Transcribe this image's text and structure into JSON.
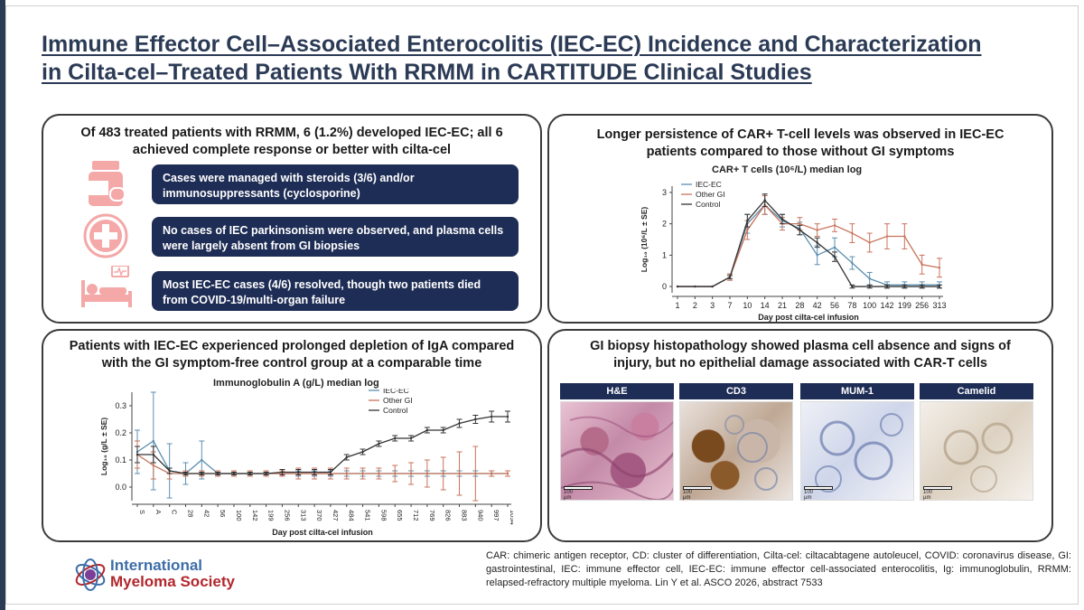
{
  "title": {
    "line1": "Immune Effector Cell–Associated Enterocolitis (IEC-EC) Incidence and Characterization",
    "line2": "in Cilta-cel–Treated Patients With RRMM in CARTITUDE Clinical Studies"
  },
  "panel_incidence": {
    "title_line1": "Of 483 treated patients with RRMM, 6 (1.2%) developed IEC-EC; all 6",
    "title_line2": "achieved complete response or better with cilta-cel",
    "items": [
      {
        "icon": "medicine-bottle-icon",
        "text": "Cases were managed with steroids (3/6) and/or immunosuppressants (cyclosporine)"
      },
      {
        "icon": "medical-cross-icon",
        "text": "No cases of IEC parkinsonism were observed, and plasma cells were largely absent from GI biopsies"
      },
      {
        "icon": "hospital-bed-icon",
        "text": "Most IEC-EC cases (4/6) resolved, though two patients died from COVID-19/multi-organ failure"
      }
    ]
  },
  "panel_car": {
    "title_line1": "Longer persistence of CAR+ T-cell levels was observed in IEC-EC",
    "title_line2": "patients compared to those without GI symptoms"
  },
  "panel_iga": {
    "title_line1": "Patients with IEC-EC experienced prolonged depletion of IgA compared",
    "title_line2": "with the GI symptom-free control group at a comparable time"
  },
  "panel_histo": {
    "title_line1": "GI biopsy histopathology showed plasma cell absence and signs of",
    "title_line2": "injury, but no epithelial damage associated with CAR-T cells",
    "stains": [
      "H&E",
      "CD3",
      "MUM-1",
      "Camelid"
    ],
    "scale_value": "100",
    "scale_unit": "µm"
  },
  "colors": {
    "iec_ec": "#5b8fb0",
    "other_gi": "#c8735a",
    "control": "#333333",
    "navy": "#1e2d55",
    "pink_icon": "#f4a8a8"
  },
  "chart_data": [
    {
      "type": "line",
      "title": "CAR+ T cells (10⁶/L) median log",
      "ylabel": "Log₁₀ (10⁶/L ± SE)",
      "xlabel": "Day post cilta-cel infusion",
      "categories": [
        "1",
        "2",
        "3",
        "7",
        "10",
        "14",
        "21",
        "28",
        "42",
        "56",
        "78",
        "100",
        "142",
        "199",
        "256",
        "313"
      ],
      "yticks": [
        0,
        1,
        2,
        3
      ],
      "ylim": [
        -0.2,
        3.2
      ],
      "legend": "top-left",
      "series": [
        {
          "name": "IEC-EC",
          "color": "#5b8fb0",
          "values": [
            0,
            0,
            0,
            0.3,
            2.0,
            2.6,
            2.1,
            1.85,
            1.0,
            1.25,
            0.75,
            0.25,
            0.05,
            0.05,
            0.05,
            0.05
          ],
          "err": [
            0,
            0,
            0,
            0.1,
            0.3,
            0.3,
            0.2,
            0.2,
            0.3,
            0.3,
            0.2,
            0.2,
            0.1,
            0.1,
            0.1,
            0.1
          ]
        },
        {
          "name": "Other GI",
          "color": "#c8735a",
          "values": [
            0,
            0,
            0,
            0.3,
            1.8,
            2.6,
            2.0,
            2.0,
            1.8,
            1.95,
            1.7,
            1.4,
            1.6,
            1.6,
            0.7,
            0.6
          ],
          "err": [
            0,
            0,
            0,
            0.1,
            0.3,
            0.3,
            0.2,
            0.2,
            0.2,
            0.2,
            0.3,
            0.3,
            0.4,
            0.4,
            0.3,
            0.3
          ]
        },
        {
          "name": "Control",
          "color": "#333333",
          "values": [
            0,
            0,
            0,
            0.3,
            2.1,
            2.75,
            2.15,
            1.8,
            1.4,
            0.95,
            0,
            0,
            0,
            0,
            0,
            0
          ],
          "err": [
            0,
            0,
            0,
            0.05,
            0.2,
            0.2,
            0.15,
            0.15,
            0.15,
            0.15,
            0.05,
            0.05,
            0.05,
            0.05,
            0.05,
            0.05
          ]
        }
      ]
    },
    {
      "type": "line",
      "title": "Immunoglobulin A (g/L) median log",
      "ylabel": "Log₁₀ (g/L ± SE)",
      "xlabel": "Day post cilta-cel infusion",
      "categories": [
        "S",
        "A",
        "C",
        "28",
        "42",
        "56",
        "100",
        "142",
        "199",
        "256",
        "313",
        "370",
        "427",
        "484",
        "541",
        "598",
        "655",
        "712",
        "769",
        "826",
        "883",
        "940",
        "997",
        "1054"
      ],
      "yticks": [
        0.0,
        0.1,
        0.2,
        0.3
      ],
      "ylim": [
        -0.05,
        0.35
      ],
      "legend": "top-right",
      "series": [
        {
          "name": "IEC-EC",
          "color": "#5b8fb0",
          "values": [
            0.13,
            0.17,
            0.06,
            0.05,
            0.1,
            0.05,
            0.05,
            0.05,
            0.05,
            0.05,
            0.05,
            0.05,
            0.05,
            0.05,
            0.05,
            0.05,
            0.05,
            0.05,
            0.05,
            0.05,
            0.05,
            0.05,
            0.05,
            0.05
          ],
          "err": [
            0.08,
            0.18,
            0.1,
            0.04,
            0.07,
            0.01,
            0.01,
            0.01,
            0.01,
            0.01,
            0.01,
            0.01,
            0.01,
            0.01,
            0.01,
            0.01,
            0.01,
            0.01,
            0.01,
            0.01,
            0.01,
            0.01,
            0.01,
            0.01
          ]
        },
        {
          "name": "Other GI",
          "color": "#c8735a",
          "values": [
            0.12,
            0.08,
            0.05,
            0.05,
            0.05,
            0.05,
            0.05,
            0.05,
            0.05,
            0.05,
            0.05,
            0.05,
            0.05,
            0.05,
            0.05,
            0.05,
            0.05,
            0.05,
            0.05,
            0.05,
            0.05,
            0.05,
            0.05,
            0.05
          ],
          "err": [
            0.05,
            0.05,
            0.02,
            0.01,
            0.01,
            0.01,
            0.01,
            0.01,
            0.01,
            0.01,
            0.02,
            0.02,
            0.02,
            0.02,
            0.02,
            0.02,
            0.03,
            0.04,
            0.05,
            0.06,
            0.08,
            0.1,
            0.01,
            0.01
          ]
        },
        {
          "name": "Control",
          "color": "#333333",
          "values": [
            0.12,
            0.12,
            0.06,
            0.05,
            0.05,
            0.05,
            0.05,
            0.05,
            0.05,
            0.055,
            0.055,
            0.055,
            0.055,
            0.11,
            0.13,
            0.16,
            0.18,
            0.18,
            0.21,
            0.21,
            0.235,
            0.25,
            0.26,
            0.26
          ],
          "err": [
            0.03,
            0.03,
            0.01,
            0.005,
            0.005,
            0.005,
            0.005,
            0.005,
            0.005,
            0.01,
            0.01,
            0.01,
            0.01,
            0.01,
            0.01,
            0.01,
            0.01,
            0.01,
            0.01,
            0.01,
            0.015,
            0.015,
            0.02,
            0.02
          ]
        }
      ]
    }
  ],
  "logo": {
    "line1": "International",
    "line2": "Myeloma Society"
  },
  "footnote": "CAR: chimeric antigen receptor, CD: cluster of differentiation, Cilta-cel: ciltacabtagene autoleucel, COVID: coronavirus disease, GI: gastrointestinal, IEC: immune effector cell, IEC-EC: immune effector cell-associated enterocolitis, Ig: immunoglobulin, RRMM: relapsed-refractory multiple myeloma. Lin Y et al. ASCO 2026, abstract 7533"
}
